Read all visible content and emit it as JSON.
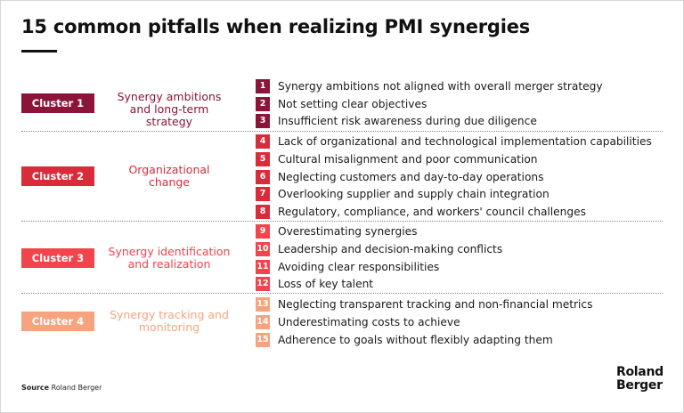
{
  "title": "15 common pitfalls when realizing PMI synergies",
  "clusters": [
    {
      "badge": "Cluster 1",
      "title": "Synergy ambitions and long-term strategy",
      "color": "#8b1538",
      "items": [
        {
          "num": "1",
          "text": "Synergy ambitions not aligned with overall merger strategy"
        },
        {
          "num": "2",
          "text": "Not setting clear objectives"
        },
        {
          "num": "3",
          "text": "Insufficient risk awareness during due diligence"
        }
      ]
    },
    {
      "badge": "Cluster 2",
      "title": "Organizational change",
      "color": "#d92b3a",
      "items": [
        {
          "num": "4",
          "text": "Lack of organizational and technological implementation capabilities"
        },
        {
          "num": "5",
          "text": "Cultural misalignment and poor communication"
        },
        {
          "num": "6",
          "text": "Neglecting customers and day-to-day operations"
        },
        {
          "num": "7",
          "text": "Overlooking supplier and supply chain integration"
        },
        {
          "num": "8",
          "text": "Regulatory, compliance, and workers' council challenges"
        }
      ]
    },
    {
      "badge": "Cluster 3",
      "title": "Synergy identification and realization",
      "color": "#f2444a",
      "items": [
        {
          "num": "9",
          "text": "Overestimating synergies"
        },
        {
          "num": "10",
          "text": "Leadership and decision-making conflicts"
        },
        {
          "num": "11",
          "text": "Avoiding clear responsibilities"
        },
        {
          "num": "12",
          "text": "Loss of key talent"
        }
      ]
    },
    {
      "badge": "Cluster 4",
      "title": "Synergy tracking and monitoring",
      "color": "#f7a37e",
      "items": [
        {
          "num": "13",
          "text": "Neglecting transparent tracking and non-financial metrics"
        },
        {
          "num": "14",
          "text": "Underestimating costs to achieve"
        },
        {
          "num": "15",
          "text": "Adherence to goals without flexibly adapting them"
        }
      ]
    }
  ],
  "source": {
    "label": "Source",
    "text": "Roland Berger"
  },
  "logo": {
    "line1": "Roland",
    "line2": "Berger"
  }
}
